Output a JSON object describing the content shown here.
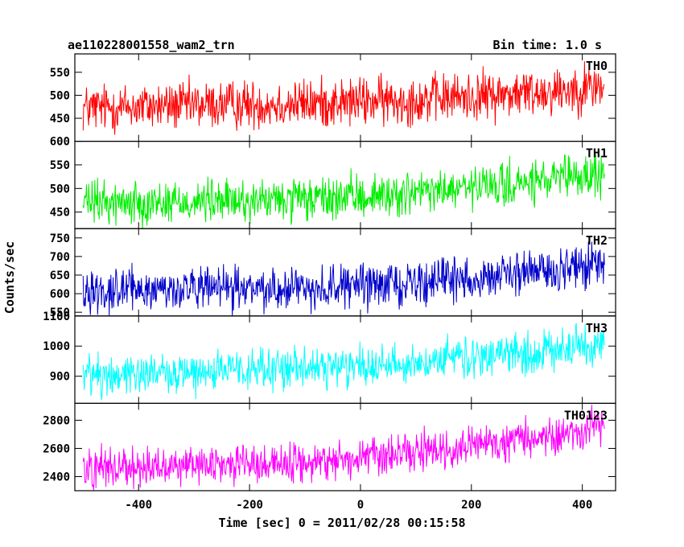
{
  "title": "ae110228001558_wam2_trn",
  "bin_time": "Bin time: 1.0 s",
  "xlabel": "Time [sec] 0 = 2011/02/28 00:15:58",
  "ylabel": "Counts/sec",
  "chart_data": [
    {
      "type": "line",
      "name": "TH0",
      "color": "#ff0000",
      "xlim": [
        -515,
        460
      ],
      "ylim": [
        400,
        590
      ],
      "yticks": [
        450,
        500,
        550
      ],
      "x_range": [
        -500,
        440
      ],
      "trend": {
        "x": [
          -500,
          -300,
          -100,
          100,
          300,
          440
        ],
        "y": [
          472,
          478,
          482,
          490,
          505,
          520
        ]
      },
      "noise_amplitude": 42
    },
    {
      "type": "line",
      "name": "TH1",
      "color": "#00ee00",
      "xlim": [
        -515,
        460
      ],
      "ylim": [
        415,
        600
      ],
      "yticks": [
        450,
        500,
        550,
        600
      ],
      "x_range": [
        -500,
        440
      ],
      "trend": {
        "x": [
          -500,
          -300,
          -100,
          100,
          300,
          440
        ],
        "y": [
          470,
          472,
          475,
          490,
          510,
          530
        ]
      },
      "noise_amplitude": 36
    },
    {
      "type": "line",
      "name": "TH2",
      "color": "#0000cc",
      "xlim": [
        -515,
        460
      ],
      "ylim": [
        540,
        775
      ],
      "yticks": [
        550,
        600,
        650,
        700,
        750
      ],
      "x_range": [
        -500,
        440
      ],
      "trend": {
        "x": [
          -500,
          -300,
          -100,
          100,
          300,
          440
        ],
        "y": [
          610,
          612,
          615,
          630,
          655,
          680
        ]
      },
      "noise_amplitude": 45
    },
    {
      "type": "line",
      "name": "TH3",
      "color": "#00ffff",
      "xlim": [
        -515,
        460
      ],
      "ylim": [
        810,
        1100
      ],
      "yticks": [
        900,
        1000,
        1100
      ],
      "x_range": [
        -500,
        440
      ],
      "trend": {
        "x": [
          -500,
          -300,
          -100,
          100,
          300,
          440
        ],
        "y": [
          905,
          915,
          925,
          945,
          975,
          1010
        ]
      },
      "noise_amplitude": 55
    },
    {
      "type": "line",
      "name": "TH0123",
      "color": "#ff00ff",
      "xlim": [
        -515,
        460
      ],
      "ylim": [
        2300,
        2920
      ],
      "yticks": [
        2400,
        2600,
        2800
      ],
      "x_range": [
        -500,
        440
      ],
      "trend": {
        "x": [
          -500,
          -300,
          -100,
          100,
          300,
          440
        ],
        "y": [
          2470,
          2480,
          2500,
          2560,
          2660,
          2760
        ]
      },
      "noise_amplitude": 110
    }
  ],
  "xticks": [
    -400,
    -200,
    0,
    200,
    400
  ]
}
